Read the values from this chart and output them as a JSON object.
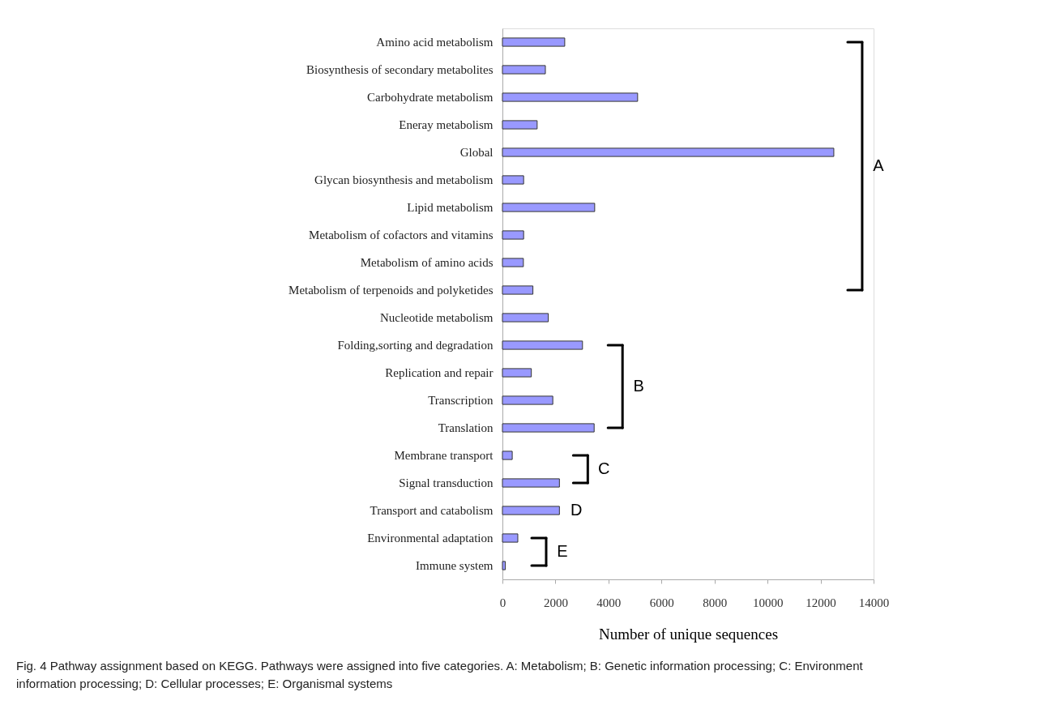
{
  "chart_data": {
    "type": "bar",
    "orientation": "horizontal",
    "categories": [
      "Amino acid metabolism",
      "Biosynthesis of secondary metabolites",
      "Carbohydrate metabolism",
      "Eneray metabolism",
      "Global",
      "Glycan biosynthesis and metabolism",
      "Lipid metabolism",
      "Metabolism of cofactors and vitamins",
      "Metabolism of amino acids",
      "Metabolism of terpenoids and polyketides",
      "Nucleotide metabolism",
      "Folding,sorting and degradation",
      "Replication and repair",
      "Transcription",
      "Translation",
      "Membrane transport",
      "Signal transduction",
      "Transport and catabolism",
      "Environmental adaptation",
      "Immune system"
    ],
    "values": [
      2350,
      1620,
      5100,
      1310,
      12500,
      800,
      3480,
      800,
      790,
      1150,
      1730,
      3020,
      1090,
      1900,
      3460,
      370,
      2150,
      2150,
      580,
      110
    ],
    "color": "#9999ff",
    "xlabel": "Number of unique sequences",
    "xlim": [
      0,
      14000
    ],
    "xticks": [
      0,
      2000,
      4000,
      6000,
      8000,
      10000,
      12000,
      14000
    ],
    "grid": false,
    "annotations": [
      "A",
      "B",
      "C",
      "D",
      "E",
      "Fig. 4 Pathway assignment based on KEGG. Pathways were assigned into five categories. A: Metabolism; B: Genetic information processing; C: Environment information processing; D: Cellular processes; E: Organismal systems"
    ]
  }
}
